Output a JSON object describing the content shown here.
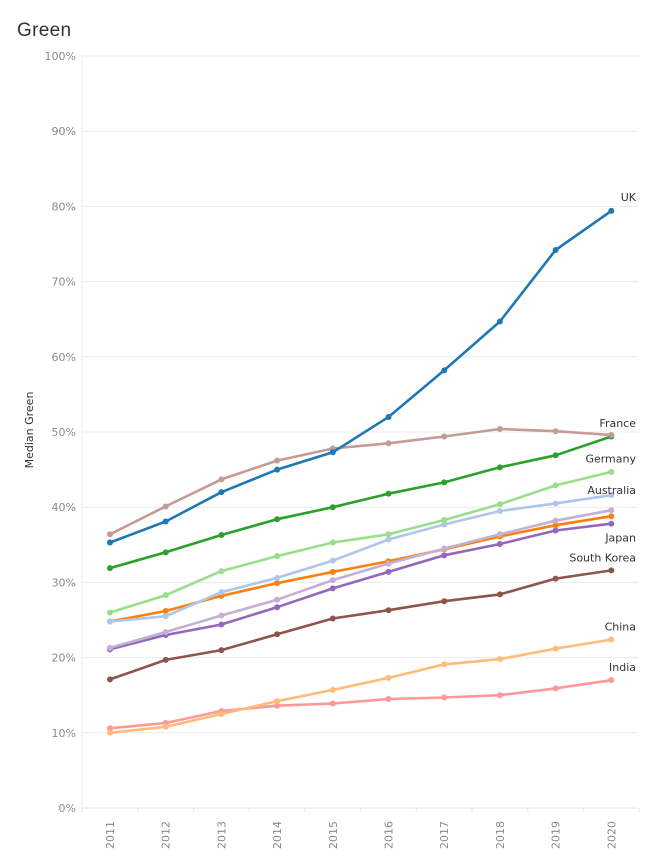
{
  "chart_data": {
    "type": "line",
    "title": "Green",
    "xlabel": "",
    "ylabel": "Median Green",
    "ylim": [
      0,
      100
    ],
    "yticks": [
      "0%",
      "10%",
      "20%",
      "30%",
      "40%",
      "50%",
      "60%",
      "70%",
      "80%",
      "90%",
      "100%"
    ],
    "x": [
      "2011",
      "2012",
      "2013",
      "2014",
      "2015",
      "2016",
      "2017",
      "2018",
      "2019",
      "2020"
    ],
    "grid": true,
    "series": [
      {
        "name": "UK",
        "label": "UK",
        "color": "#1f77b4",
        "values": [
          35.3,
          38.1,
          42.0,
          45.0,
          47.3,
          52.0,
          58.2,
          64.7,
          74.2,
          79.4
        ]
      },
      {
        "name": "France",
        "label": "France",
        "color": "#c49c94",
        "values": [
          36.4,
          40.1,
          43.7,
          46.2,
          47.8,
          48.5,
          49.4,
          50.4,
          50.1,
          49.6
        ]
      },
      {
        "name": "Germany",
        "label": "Germany",
        "color": "#2ca02c",
        "values": [
          31.9,
          34.0,
          36.3,
          38.4,
          40.0,
          41.8,
          43.3,
          45.3,
          46.9,
          49.4
        ]
      },
      {
        "name": "series-light-green",
        "label": null,
        "color": "#98df8a",
        "values": [
          26.0,
          28.3,
          31.5,
          33.5,
          35.3,
          36.4,
          38.3,
          40.4,
          42.9,
          44.7
        ]
      },
      {
        "name": "Australia",
        "label": "Australia",
        "color": "#aec7e8",
        "values": [
          24.8,
          25.5,
          28.7,
          30.6,
          32.9,
          35.7,
          37.7,
          39.5,
          40.5,
          41.6
        ]
      },
      {
        "name": "series-lavender",
        "label": null,
        "color": "#c5b0d5",
        "values": [
          21.3,
          23.4,
          25.6,
          27.7,
          30.3,
          32.5,
          34.5,
          36.4,
          38.2,
          39.6
        ]
      },
      {
        "name": "series-orange",
        "label": null,
        "color": "#ff7f0e",
        "values": [
          24.8,
          26.2,
          28.2,
          29.9,
          31.4,
          32.8,
          34.4,
          36.1,
          37.6,
          38.8
        ]
      },
      {
        "name": "Japan",
        "label": "Japan",
        "color": "#9467bd",
        "values": [
          21.1,
          23.0,
          24.4,
          26.7,
          29.2,
          31.4,
          33.6,
          35.1,
          36.9,
          37.8
        ]
      },
      {
        "name": "South Korea",
        "label": "South Korea",
        "color": "#8c564b",
        "values": [
          17.1,
          19.7,
          21.0,
          23.1,
          25.2,
          26.3,
          27.5,
          28.4,
          30.5,
          31.6
        ]
      },
      {
        "name": "China",
        "label": "China",
        "color": "#ffbb78",
        "values": [
          10.0,
          10.8,
          12.5,
          14.2,
          15.7,
          17.3,
          19.1,
          19.8,
          21.2,
          22.4
        ]
      },
      {
        "name": "India",
        "label": "India",
        "color": "#ff9896",
        "values": [
          10.6,
          11.3,
          12.9,
          13.6,
          13.9,
          14.5,
          14.7,
          15.0,
          15.9,
          17.0
        ]
      }
    ]
  }
}
